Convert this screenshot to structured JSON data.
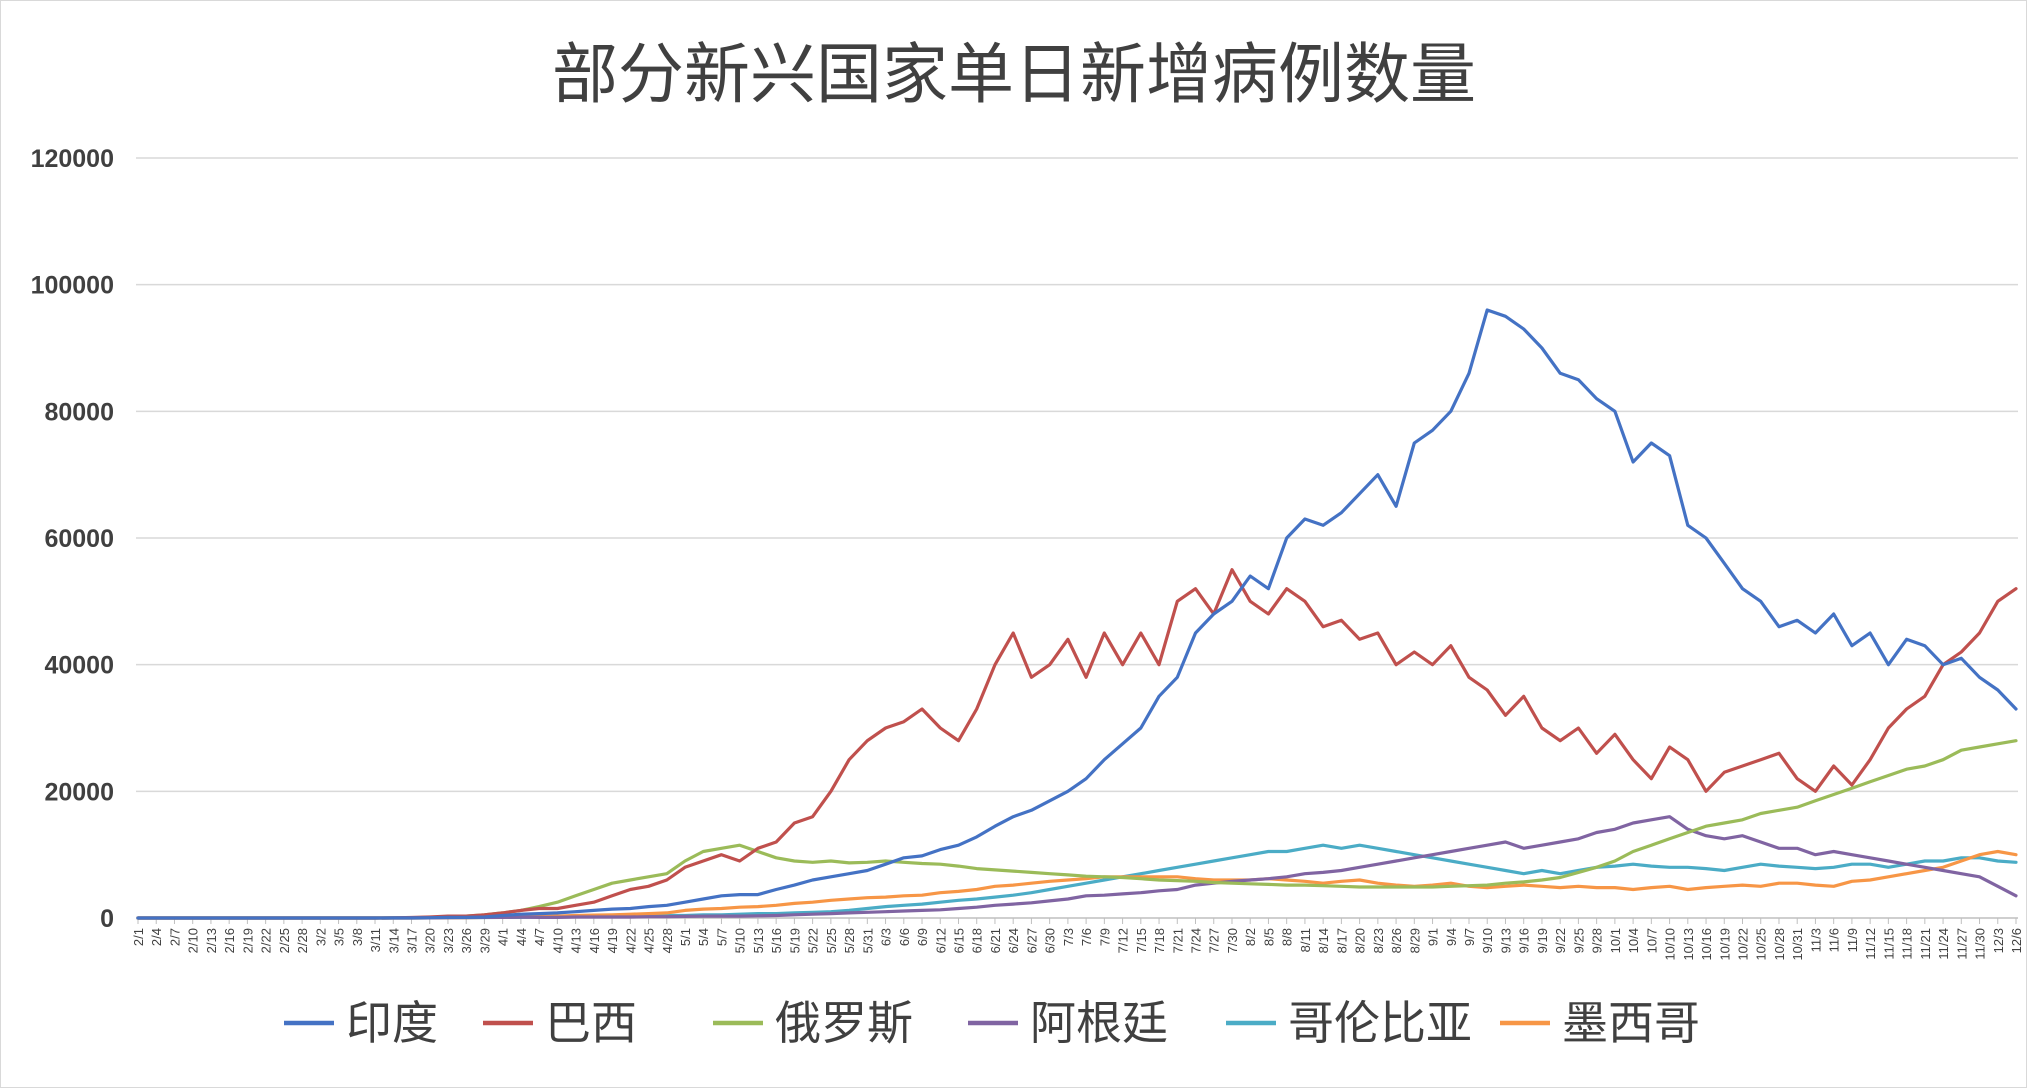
{
  "chart_data": {
    "type": "line",
    "title": "部分新兴国家单日新增病例数量",
    "xlabel": "",
    "ylabel": "",
    "ylim": [
      0,
      120000
    ],
    "yticks": [
      0,
      20000,
      40000,
      60000,
      80000,
      100000,
      120000
    ],
    "grid": "horizontal",
    "legend_position": "bottom",
    "x_tick_labels": [
      "2/1",
      "2/4",
      "2/7",
      "2/10",
      "2/13",
      "2/16",
      "2/19",
      "2/22",
      "2/25",
      "2/28",
      "3/2",
      "3/5",
      "3/8",
      "3/11",
      "3/14",
      "3/17",
      "3/20",
      "3/23",
      "3/26",
      "3/29",
      "4/1",
      "4/4",
      "4/7",
      "4/10",
      "4/13",
      "4/16",
      "4/19",
      "4/22",
      "4/25",
      "4/28",
      "5/1",
      "5/4",
      "5/7",
      "5/10",
      "5/13",
      "5/16",
      "5/19",
      "5/22",
      "5/25",
      "5/28",
      "5/31",
      "6/3",
      "6/6",
      "6/9",
      "6/12",
      "6/15",
      "6/18",
      "6/21",
      "6/24",
      "6/27",
      "6/30",
      "7/3",
      "7/6",
      "7/9",
      "7/12",
      "7/15",
      "7/18",
      "7/21",
      "7/24",
      "7/27",
      "7/30",
      "8/2",
      "8/5",
      "8/8",
      "8/11",
      "8/14",
      "8/17",
      "8/20",
      "8/23",
      "8/26",
      "8/29",
      "9/1",
      "9/4",
      "9/7",
      "9/10",
      "9/13",
      "9/16",
      "9/19",
      "9/22",
      "9/25",
      "9/28",
      "10/1",
      "10/4",
      "10/7",
      "10/10",
      "10/13",
      "10/16",
      "10/19",
      "10/22",
      "10/25",
      "10/28",
      "10/31",
      "11/3",
      "11/6",
      "11/9",
      "11/12",
      "11/15",
      "11/18",
      "11/21",
      "11/24",
      "11/27",
      "11/30",
      "12/3",
      "12/6"
    ],
    "x_note": "values sampled every 3 days, aligned with x_tick_labels",
    "series": [
      {
        "name": "印度",
        "color": "#4472C4",
        "values": [
          0,
          0,
          0,
          0,
          0,
          0,
          0,
          0,
          0,
          0,
          0,
          0,
          0,
          0,
          20,
          20,
          50,
          100,
          100,
          150,
          400,
          600,
          700,
          800,
          1000,
          1200,
          1400,
          1500,
          1800,
          2000,
          2500,
          3000,
          3500,
          3700,
          3700,
          4500,
          5200,
          6000,
          6500,
          7000,
          7500,
          8500,
          9500,
          9800,
          10800,
          11500,
          12800,
          14500,
          16000,
          17000,
          18500,
          20000,
          22000,
          25000,
          27500,
          30000,
          35000,
          38000,
          45000,
          48000,
          50000,
          54000,
          52000,
          60000,
          63000,
          62000,
          64000,
          67000,
          70000,
          65000,
          75000,
          77000,
          80000,
          86000,
          96000,
          95000,
          93000,
          90000,
          86000,
          85000,
          82000,
          80000,
          72000,
          75000,
          73000,
          62000,
          60000,
          56000,
          52000,
          50000,
          46000,
          47000,
          45000,
          48000,
          43000,
          45000,
          40000,
          44000,
          43000,
          40000,
          41000,
          38000,
          36000,
          33000
        ]
      },
      {
        "name": "巴西",
        "color": "#C0504D",
        "values": [
          0,
          0,
          0,
          0,
          0,
          0,
          0,
          0,
          0,
          0,
          0,
          0,
          0,
          0,
          20,
          80,
          150,
          300,
          300,
          500,
          800,
          1200,
          1500,
          1500,
          2000,
          2500,
          3500,
          4500,
          5000,
          6000,
          8000,
          9000,
          10000,
          9000,
          11000,
          12000,
          15000,
          16000,
          20000,
          25000,
          28000,
          30000,
          31000,
          33000,
          30000,
          28000,
          33000,
          40000,
          45000,
          38000,
          40000,
          44000,
          38000,
          45000,
          40000,
          45000,
          40000,
          50000,
          52000,
          48000,
          55000,
          50000,
          48000,
          52000,
          50000,
          46000,
          47000,
          44000,
          45000,
          40000,
          42000,
          40000,
          43000,
          38000,
          36000,
          32000,
          35000,
          30000,
          28000,
          30000,
          26000,
          29000,
          25000,
          22000,
          27000,
          25000,
          20000,
          23000,
          24000,
          25000,
          26000,
          22000,
          20000,
          24000,
          21000,
          25000,
          30000,
          33000,
          35000,
          40000,
          42000,
          45000,
          50000,
          52000
        ]
      },
      {
        "name": "俄罗斯",
        "color": "#9BBB59",
        "values": [
          0,
          0,
          0,
          0,
          0,
          0,
          0,
          0,
          0,
          0,
          0,
          0,
          0,
          0,
          20,
          50,
          100,
          200,
          300,
          500,
          800,
          1200,
          1800,
          2500,
          3500,
          4500,
          5500,
          6000,
          6500,
          7000,
          9000,
          10500,
          11000,
          11500,
          10500,
          9500,
          9000,
          8800,
          9000,
          8700,
          8800,
          9000,
          8800,
          8600,
          8500,
          8200,
          7800,
          7600,
          7400,
          7200,
          7000,
          6800,
          6600,
          6500,
          6400,
          6200,
          6000,
          5900,
          5800,
          5600,
          5500,
          5400,
          5300,
          5200,
          5200,
          5100,
          5000,
          4900,
          4900,
          4900,
          4900,
          4900,
          5000,
          5100,
          5200,
          5500,
          5700,
          6000,
          6400,
          7200,
          8000,
          9000,
          10500,
          11500,
          12500,
          13500,
          14500,
          15000,
          15500,
          16500,
          17000,
          17500,
          18500,
          19500,
          20500,
          21500,
          22500,
          23500,
          24000,
          25000,
          26500,
          27000,
          27500,
          28000
        ]
      },
      {
        "name": "阿根廷",
        "color": "#8064A2",
        "values": [
          0,
          0,
          0,
          0,
          0,
          0,
          0,
          0,
          0,
          0,
          0,
          0,
          0,
          0,
          0,
          5,
          20,
          50,
          80,
          100,
          100,
          120,
          100,
          100,
          150,
          150,
          150,
          150,
          200,
          200,
          250,
          280,
          300,
          300,
          350,
          400,
          500,
          600,
          700,
          800,
          900,
          1000,
          1100,
          1200,
          1300,
          1500,
          1700,
          2000,
          2200,
          2400,
          2700,
          3000,
          3500,
          3600,
          3800,
          4000,
          4300,
          4500,
          5200,
          5500,
          5800,
          6000,
          6200,
          6500,
          7000,
          7200,
          7500,
          8000,
          8500,
          9000,
          9500,
          10000,
          10500,
          11000,
          11500,
          12000,
          11000,
          11500,
          12000,
          12500,
          13500,
          14000,
          15000,
          15500,
          16000,
          14000,
          13000,
          12500,
          13000,
          12000,
          11000,
          11000,
          10000,
          10500,
          10000,
          9500,
          9000,
          8500,
          8000,
          7500,
          7000,
          6500,
          5000,
          3500
        ]
      },
      {
        "name": "哥伦比亚",
        "color": "#4BACC6",
        "values": [
          0,
          0,
          0,
          0,
          0,
          0,
          0,
          0,
          0,
          0,
          0,
          0,
          0,
          0,
          0,
          5,
          20,
          40,
          50,
          80,
          100,
          100,
          150,
          150,
          200,
          250,
          250,
          300,
          300,
          400,
          400,
          500,
          500,
          600,
          700,
          700,
          800,
          900,
          1000,
          1200,
          1500,
          1800,
          2000,
          2200,
          2500,
          2800,
          3000,
          3300,
          3600,
          4000,
          4500,
          5000,
          5500,
          6000,
          6500,
          7000,
          7500,
          8000,
          8500,
          9000,
          9500,
          10000,
          10500,
          10500,
          11000,
          11500,
          11000,
          11500,
          11000,
          10500,
          10000,
          9500,
          9000,
          8500,
          8000,
          7500,
          7000,
          7500,
          7000,
          7500,
          8000,
          8200,
          8500,
          8200,
          8000,
          8000,
          7800,
          7500,
          8000,
          8500,
          8200,
          8000,
          7800,
          8000,
          8500,
          8500,
          8000,
          8500,
          9000,
          9000,
          9500,
          9500,
          9000,
          8800
        ]
      },
      {
        "name": "墨西哥",
        "color": "#F79646",
        "values": [
          0,
          0,
          0,
          0,
          0,
          0,
          0,
          0,
          0,
          0,
          0,
          0,
          0,
          0,
          0,
          5,
          20,
          50,
          70,
          100,
          150,
          200,
          250,
          300,
          400,
          450,
          500,
          600,
          700,
          800,
          1200,
          1400,
          1500,
          1700,
          1800,
          2000,
          2300,
          2500,
          2800,
          3000,
          3200,
          3300,
          3500,
          3600,
          4000,
          4200,
          4500,
          5000,
          5200,
          5500,
          5800,
          6000,
          6200,
          6500,
          6500,
          6500,
          6500,
          6500,
          6200,
          6000,
          6000,
          6000,
          6200,
          6000,
          5800,
          5500,
          5800,
          6000,
          5500,
          5200,
          5000,
          5200,
          5500,
          5000,
          4800,
          5000,
          5200,
          5000,
          4800,
          5000,
          4800,
          4800,
          4500,
          4800,
          5000,
          4500,
          4800,
          5000,
          5200,
          5000,
          5500,
          5500,
          5200,
          5000,
          5800,
          6000,
          6500,
          7000,
          7500,
          8000,
          9000,
          10000,
          10500,
          10000
        ]
      }
    ]
  }
}
